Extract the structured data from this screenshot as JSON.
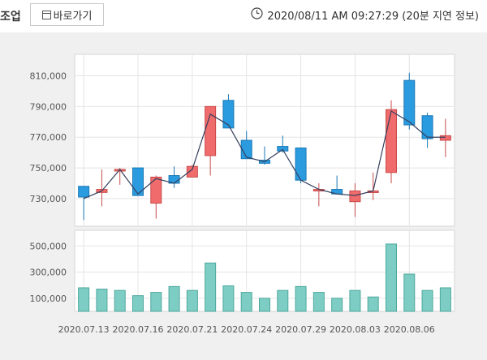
{
  "header": {
    "section_label": "조업",
    "shortcut_label": "바로가기",
    "timestamp": "2020/08/11 AM 09:27:29 (20분 지연 정보)"
  },
  "icons": {
    "shortcut": "window-icon",
    "clock": "clock-icon"
  },
  "colors": {
    "up": "#f06c6c",
    "down": "#2b9be0",
    "volume": "#7ecdc4",
    "ma_line": "#34405e"
  },
  "chart_data": [
    {
      "type": "candlestick",
      "yticks": [
        "810,000",
        "790,000",
        "770,000",
        "750,000",
        "730,000"
      ],
      "ylim": [
        712000,
        824000
      ],
      "grid": true,
      "candles": [
        {
          "open": 738000,
          "close": 731000,
          "high": 738000,
          "low": 716000
        },
        {
          "open": 734000,
          "close": 736000,
          "high": 749000,
          "low": 725000
        },
        {
          "open": 749000,
          "close": 749000,
          "high": 750000,
          "low": 739000
        },
        {
          "open": 750000,
          "close": 732000,
          "high": 750000,
          "low": 732000
        },
        {
          "open": 727000,
          "close": 744000,
          "high": 745000,
          "low": 717000
        },
        {
          "open": 745000,
          "close": 740000,
          "high": 751000,
          "low": 737000
        },
        {
          "open": 744000,
          "close": 751000,
          "high": 752000,
          "low": 744000
        },
        {
          "open": 758000,
          "close": 790000,
          "high": 790000,
          "low": 745000
        },
        {
          "open": 794000,
          "close": 776000,
          "high": 798000,
          "low": 776000
        },
        {
          "open": 768000,
          "close": 756000,
          "high": 774000,
          "low": 756000
        },
        {
          "open": 755000,
          "close": 753000,
          "high": 764000,
          "low": 752000
        },
        {
          "open": 764000,
          "close": 761000,
          "high": 771000,
          "low": 760000
        },
        {
          "open": 763000,
          "close": 742000,
          "high": 763000,
          "low": 740000
        },
        {
          "open": 736000,
          "close": 736000,
          "high": 740000,
          "low": 725000
        },
        {
          "open": 736000,
          "close": 733000,
          "high": 745000,
          "low": 733000
        },
        {
          "open": 728000,
          "close": 735000,
          "high": 740000,
          "low": 718000
        },
        {
          "open": 735000,
          "close": 735000,
          "high": 747000,
          "low": 729000
        },
        {
          "open": 747000,
          "close": 788000,
          "high": 794000,
          "low": 740000
        },
        {
          "open": 807000,
          "close": 778000,
          "high": 812000,
          "low": 775000
        },
        {
          "open": 784000,
          "close": 769000,
          "high": 786000,
          "low": 763000
        },
        {
          "open": 768000,
          "close": 771000,
          "high": 782000,
          "low": 757000
        }
      ],
      "ma_line": [
        730000,
        735000,
        749000,
        733000,
        743000,
        740000,
        749000,
        785000,
        778000,
        757000,
        754000,
        762000,
        742000,
        736000,
        733000,
        732000,
        735000,
        787000,
        780000,
        770000,
        770000
      ]
    },
    {
      "type": "bar",
      "yticks": [
        "500,000",
        "300,000",
        "100,000"
      ],
      "ylim": [
        0,
        620000
      ],
      "grid": true,
      "values": [
        180000,
        170000,
        160000,
        120000,
        145000,
        190000,
        160000,
        370000,
        195000,
        145000,
        100000,
        160000,
        190000,
        145000,
        100000,
        160000,
        110000,
        515000,
        285000,
        160000,
        180000
      ]
    }
  ],
  "xticks": [
    "2020.07.13",
    "2020.07.16",
    "2020.07.21",
    "2020.07.24",
    "2020.07.29",
    "2020.08.03",
    "2020.08.06"
  ],
  "xtick_candle_index": [
    0,
    3,
    6,
    9,
    12,
    15,
    18
  ]
}
